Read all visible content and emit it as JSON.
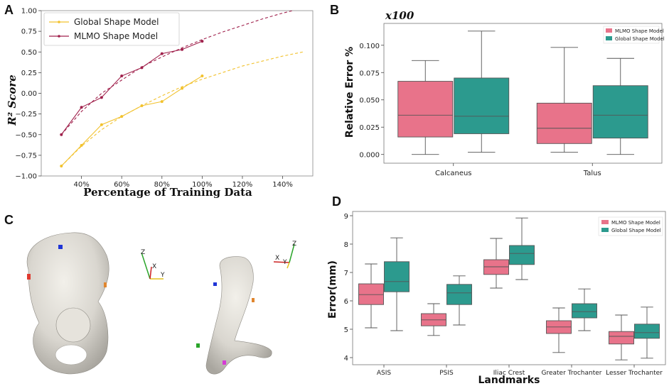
{
  "panels": {
    "a": "A",
    "b": "B",
    "c": "C",
    "d": "D"
  },
  "colors": {
    "global_line": "#f2c22e",
    "mlmo_line": "#a0214c",
    "pink_box": "#e8738a",
    "teal_box": "#2c9a8e"
  },
  "chart_data": [
    {
      "type": "line",
      "panel": "A",
      "xlabel": "Percentage of Training Data",
      "ylabel": "R² Score",
      "xlim": [
        0.2,
        1.55
      ],
      "ylim": [
        -1.0,
        1.0
      ],
      "x_ticks": [
        0.4,
        0.6,
        0.8,
        1.0,
        1.2,
        1.4
      ],
      "x_tick_labels": [
        "40%",
        "60%",
        "80%",
        "100%",
        "120%",
        "140%"
      ],
      "y_ticks": [
        -1.0,
        -0.75,
        -0.5,
        -0.25,
        0.0,
        0.25,
        0.5,
        0.75,
        1.0
      ],
      "y_tick_labels": [
        "−1.00",
        "−0.75",
        "−0.50",
        "−0.25",
        "0.00",
        "0.25",
        "0.50",
        "0.75",
        "1.00"
      ],
      "legend_position": "top-left",
      "series": [
        {
          "name": "Global Shape Model",
          "x": [
            0.3,
            0.4,
            0.5,
            0.6,
            0.7,
            0.8,
            0.9,
            1.0
          ],
          "values": [
            -0.88,
            -0.63,
            -0.38,
            -0.28,
            -0.15,
            -0.1,
            0.06,
            0.21
          ],
          "trend_x": [
            0.3,
            0.4,
            0.5,
            0.6,
            0.7,
            0.8,
            0.9,
            1.0,
            1.1,
            1.2,
            1.3,
            1.4,
            1.5
          ],
          "trend": [
            -0.88,
            -0.64,
            -0.44,
            -0.28,
            -0.15,
            -0.03,
            0.08,
            0.17,
            0.25,
            0.33,
            0.39,
            0.45,
            0.5
          ]
        },
        {
          "name": "MLMO Shape Model",
          "x": [
            0.3,
            0.4,
            0.5,
            0.6,
            0.7,
            0.8,
            0.9,
            1.0
          ],
          "values": [
            -0.5,
            -0.17,
            -0.05,
            0.21,
            0.31,
            0.48,
            0.53,
            0.63
          ],
          "trend_x": [
            0.3,
            0.4,
            0.5,
            0.6,
            0.7,
            0.8,
            0.9,
            1.0,
            1.1,
            1.2,
            1.3,
            1.4,
            1.45
          ],
          "trend": [
            -0.5,
            -0.22,
            0.0,
            0.16,
            0.32,
            0.44,
            0.55,
            0.65,
            0.74,
            0.82,
            0.9,
            0.97,
            1.0
          ]
        }
      ]
    },
    {
      "type": "box",
      "panel": "B",
      "multiplier_label": "x100",
      "xlabel": "",
      "ylabel": "Relative Error %",
      "ylim": [
        -0.008,
        0.12
      ],
      "y_ticks": [
        0.0,
        0.025,
        0.05,
        0.075,
        0.1
      ],
      "y_tick_labels": [
        "0.000",
        "0.025",
        "0.050",
        "0.075",
        "0.100"
      ],
      "categories": [
        "Calcaneus",
        "Talus"
      ],
      "legend_position": "top-right",
      "series": [
        {
          "name": "MLMO Shape Model",
          "boxes": [
            {
              "min": 0.0,
              "q1": 0.016,
              "median": 0.036,
              "q3": 0.067,
              "max": 0.086
            },
            {
              "min": 0.002,
              "q1": 0.01,
              "median": 0.024,
              "q3": 0.047,
              "max": 0.098
            }
          ]
        },
        {
          "name": "Global Shape Model",
          "boxes": [
            {
              "min": 0.002,
              "q1": 0.019,
              "median": 0.035,
              "q3": 0.07,
              "max": 0.113
            },
            {
              "min": 0.0,
              "q1": 0.015,
              "median": 0.036,
              "q3": 0.063,
              "max": 0.088
            }
          ]
        }
      ]
    },
    {
      "type": "box",
      "panel": "D",
      "xlabel": "Landmarks",
      "ylabel": "Error(mm)",
      "ylim": [
        3.75,
        9.15
      ],
      "y_ticks": [
        4,
        5,
        6,
        7,
        8,
        9
      ],
      "y_tick_labels": [
        "4",
        "5",
        "6",
        "7",
        "8",
        "9"
      ],
      "categories": [
        "ASIS",
        "PSIS",
        "Iliac Crest",
        "Greater Trochanter",
        "Lesser Trochanter"
      ],
      "legend_position": "top-right",
      "series": [
        {
          "name": "MLMO Shape Model",
          "boxes": [
            {
              "min": 5.05,
              "q1": 5.87,
              "median": 6.22,
              "q3": 6.6,
              "max": 7.3
            },
            {
              "min": 4.78,
              "q1": 5.12,
              "median": 5.33,
              "q3": 5.55,
              "max": 5.9
            },
            {
              "min": 6.45,
              "q1": 6.93,
              "median": 7.2,
              "q3": 7.45,
              "max": 8.2
            },
            {
              "min": 4.18,
              "q1": 4.85,
              "median": 5.08,
              "q3": 5.3,
              "max": 5.75
            },
            {
              "min": 3.92,
              "q1": 4.48,
              "median": 4.75,
              "q3": 4.92,
              "max": 5.5
            }
          ]
        },
        {
          "name": "Global Shape Model",
          "boxes": [
            {
              "min": 4.95,
              "q1": 6.32,
              "median": 6.68,
              "q3": 7.38,
              "max": 8.22
            },
            {
              "min": 5.15,
              "q1": 5.87,
              "median": 6.28,
              "q3": 6.58,
              "max": 6.88
            },
            {
              "min": 6.75,
              "q1": 7.28,
              "median": 7.67,
              "q3": 7.95,
              "max": 8.92
            },
            {
              "min": 4.95,
              "q1": 5.4,
              "median": 5.62,
              "q3": 5.9,
              "max": 6.42
            },
            {
              "min": 3.98,
              "q1": 4.68,
              "median": 4.88,
              "q3": 5.18,
              "max": 5.78
            }
          ]
        }
      ]
    }
  ],
  "panel_c": {
    "description_axes_labels": [
      "Z",
      "X",
      "Y"
    ]
  }
}
